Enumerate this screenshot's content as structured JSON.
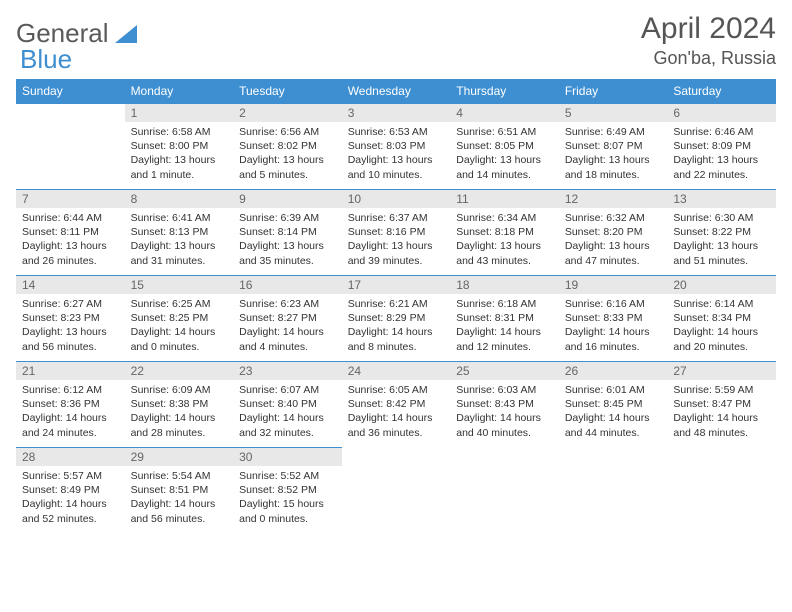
{
  "logo": {
    "text1": "General",
    "text2": "Blue"
  },
  "title": "April 2024",
  "location": "Gon'ba, Russia",
  "colors": {
    "header_bg": "#3d8fd1",
    "header_text": "#ffffff",
    "daynum_bg": "#e8e8e8",
    "daynum_text": "#666666",
    "border": "#3d8fd1",
    "text": "#333333"
  },
  "weekdays": [
    "Sunday",
    "Monday",
    "Tuesday",
    "Wednesday",
    "Thursday",
    "Friday",
    "Saturday"
  ],
  "weeks": [
    [
      null,
      {
        "n": "1",
        "sr": "Sunrise: 6:58 AM",
        "ss": "Sunset: 8:00 PM",
        "d1": "Daylight: 13 hours",
        "d2": "and 1 minute."
      },
      {
        "n": "2",
        "sr": "Sunrise: 6:56 AM",
        "ss": "Sunset: 8:02 PM",
        "d1": "Daylight: 13 hours",
        "d2": "and 5 minutes."
      },
      {
        "n": "3",
        "sr": "Sunrise: 6:53 AM",
        "ss": "Sunset: 8:03 PM",
        "d1": "Daylight: 13 hours",
        "d2": "and 10 minutes."
      },
      {
        "n": "4",
        "sr": "Sunrise: 6:51 AM",
        "ss": "Sunset: 8:05 PM",
        "d1": "Daylight: 13 hours",
        "d2": "and 14 minutes."
      },
      {
        "n": "5",
        "sr": "Sunrise: 6:49 AM",
        "ss": "Sunset: 8:07 PM",
        "d1": "Daylight: 13 hours",
        "d2": "and 18 minutes."
      },
      {
        "n": "6",
        "sr": "Sunrise: 6:46 AM",
        "ss": "Sunset: 8:09 PM",
        "d1": "Daylight: 13 hours",
        "d2": "and 22 minutes."
      }
    ],
    [
      {
        "n": "7",
        "sr": "Sunrise: 6:44 AM",
        "ss": "Sunset: 8:11 PM",
        "d1": "Daylight: 13 hours",
        "d2": "and 26 minutes."
      },
      {
        "n": "8",
        "sr": "Sunrise: 6:41 AM",
        "ss": "Sunset: 8:13 PM",
        "d1": "Daylight: 13 hours",
        "d2": "and 31 minutes."
      },
      {
        "n": "9",
        "sr": "Sunrise: 6:39 AM",
        "ss": "Sunset: 8:14 PM",
        "d1": "Daylight: 13 hours",
        "d2": "and 35 minutes."
      },
      {
        "n": "10",
        "sr": "Sunrise: 6:37 AM",
        "ss": "Sunset: 8:16 PM",
        "d1": "Daylight: 13 hours",
        "d2": "and 39 minutes."
      },
      {
        "n": "11",
        "sr": "Sunrise: 6:34 AM",
        "ss": "Sunset: 8:18 PM",
        "d1": "Daylight: 13 hours",
        "d2": "and 43 minutes."
      },
      {
        "n": "12",
        "sr": "Sunrise: 6:32 AM",
        "ss": "Sunset: 8:20 PM",
        "d1": "Daylight: 13 hours",
        "d2": "and 47 minutes."
      },
      {
        "n": "13",
        "sr": "Sunrise: 6:30 AM",
        "ss": "Sunset: 8:22 PM",
        "d1": "Daylight: 13 hours",
        "d2": "and 51 minutes."
      }
    ],
    [
      {
        "n": "14",
        "sr": "Sunrise: 6:27 AM",
        "ss": "Sunset: 8:23 PM",
        "d1": "Daylight: 13 hours",
        "d2": "and 56 minutes."
      },
      {
        "n": "15",
        "sr": "Sunrise: 6:25 AM",
        "ss": "Sunset: 8:25 PM",
        "d1": "Daylight: 14 hours",
        "d2": "and 0 minutes."
      },
      {
        "n": "16",
        "sr": "Sunrise: 6:23 AM",
        "ss": "Sunset: 8:27 PM",
        "d1": "Daylight: 14 hours",
        "d2": "and 4 minutes."
      },
      {
        "n": "17",
        "sr": "Sunrise: 6:21 AM",
        "ss": "Sunset: 8:29 PM",
        "d1": "Daylight: 14 hours",
        "d2": "and 8 minutes."
      },
      {
        "n": "18",
        "sr": "Sunrise: 6:18 AM",
        "ss": "Sunset: 8:31 PM",
        "d1": "Daylight: 14 hours",
        "d2": "and 12 minutes."
      },
      {
        "n": "19",
        "sr": "Sunrise: 6:16 AM",
        "ss": "Sunset: 8:33 PM",
        "d1": "Daylight: 14 hours",
        "d2": "and 16 minutes."
      },
      {
        "n": "20",
        "sr": "Sunrise: 6:14 AM",
        "ss": "Sunset: 8:34 PM",
        "d1": "Daylight: 14 hours",
        "d2": "and 20 minutes."
      }
    ],
    [
      {
        "n": "21",
        "sr": "Sunrise: 6:12 AM",
        "ss": "Sunset: 8:36 PM",
        "d1": "Daylight: 14 hours",
        "d2": "and 24 minutes."
      },
      {
        "n": "22",
        "sr": "Sunrise: 6:09 AM",
        "ss": "Sunset: 8:38 PM",
        "d1": "Daylight: 14 hours",
        "d2": "and 28 minutes."
      },
      {
        "n": "23",
        "sr": "Sunrise: 6:07 AM",
        "ss": "Sunset: 8:40 PM",
        "d1": "Daylight: 14 hours",
        "d2": "and 32 minutes."
      },
      {
        "n": "24",
        "sr": "Sunrise: 6:05 AM",
        "ss": "Sunset: 8:42 PM",
        "d1": "Daylight: 14 hours",
        "d2": "and 36 minutes."
      },
      {
        "n": "25",
        "sr": "Sunrise: 6:03 AM",
        "ss": "Sunset: 8:43 PM",
        "d1": "Daylight: 14 hours",
        "d2": "and 40 minutes."
      },
      {
        "n": "26",
        "sr": "Sunrise: 6:01 AM",
        "ss": "Sunset: 8:45 PM",
        "d1": "Daylight: 14 hours",
        "d2": "and 44 minutes."
      },
      {
        "n": "27",
        "sr": "Sunrise: 5:59 AM",
        "ss": "Sunset: 8:47 PM",
        "d1": "Daylight: 14 hours",
        "d2": "and 48 minutes."
      }
    ],
    [
      {
        "n": "28",
        "sr": "Sunrise: 5:57 AM",
        "ss": "Sunset: 8:49 PM",
        "d1": "Daylight: 14 hours",
        "d2": "and 52 minutes."
      },
      {
        "n": "29",
        "sr": "Sunrise: 5:54 AM",
        "ss": "Sunset: 8:51 PM",
        "d1": "Daylight: 14 hours",
        "d2": "and 56 minutes."
      },
      {
        "n": "30",
        "sr": "Sunrise: 5:52 AM",
        "ss": "Sunset: 8:52 PM",
        "d1": "Daylight: 15 hours",
        "d2": "and 0 minutes."
      },
      null,
      null,
      null,
      null
    ]
  ]
}
